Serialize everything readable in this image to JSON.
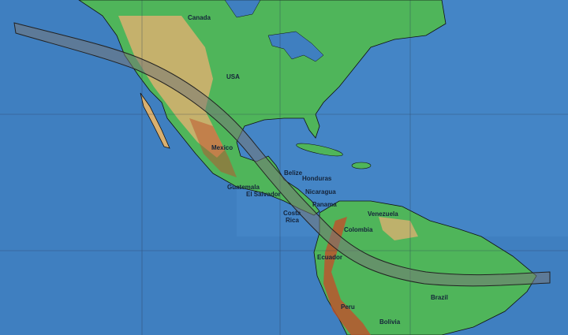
{
  "map": {
    "colors": {
      "ocean": "#3f7fc0",
      "land": "#4fb55a",
      "highland": "#d9b070",
      "mountain": "#c0502a",
      "path": "#6a6a6a",
      "border": "#111111"
    },
    "labels": [
      {
        "id": "canada",
        "text": "Canada"
      },
      {
        "id": "usa",
        "text": "USA"
      },
      {
        "id": "mexico",
        "text": "Mexico"
      },
      {
        "id": "belize",
        "text": "Belize"
      },
      {
        "id": "honduras",
        "text": "Honduras"
      },
      {
        "id": "guatemala",
        "text": "Guatemala"
      },
      {
        "id": "el-salvador",
        "text": "El Salvador"
      },
      {
        "id": "nicaragua",
        "text": "Nicaragua"
      },
      {
        "id": "panama",
        "text": "Panama"
      },
      {
        "id": "costa",
        "text": "Costa"
      },
      {
        "id": "rica",
        "text": "Rica"
      },
      {
        "id": "venezuela",
        "text": "Venezuela"
      },
      {
        "id": "colombia",
        "text": "Colombia"
      },
      {
        "id": "ecuador",
        "text": "Ecuador"
      },
      {
        "id": "brazil",
        "text": "Brazil"
      },
      {
        "id": "peru",
        "text": "Peru"
      },
      {
        "id": "bolivia",
        "text": "Bolivia"
      }
    ]
  }
}
